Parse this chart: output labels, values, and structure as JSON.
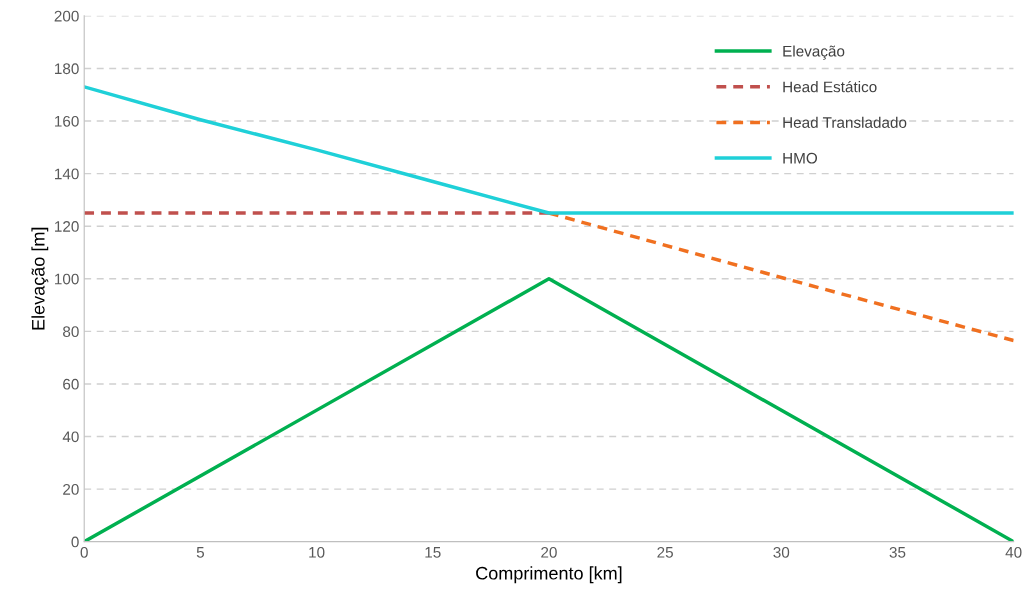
{
  "chart_data": {
    "type": "line",
    "xlabel": "Comprimento [km]",
    "ylabel": "Elevação [m]",
    "xlim": [
      0,
      40
    ],
    "xticks": [
      0,
      5,
      10,
      15,
      20,
      25,
      30,
      35,
      40
    ],
    "ylim": [
      0,
      200
    ],
    "yticks": [
      0,
      20,
      40,
      60,
      80,
      100,
      120,
      140,
      160,
      180,
      200
    ],
    "grid": "y",
    "legend": "top right",
    "marker": "none",
    "series": [
      {
        "name": "Elevação",
        "color": "#00b050",
        "line_style": "solid",
        "x": [
          0,
          20,
          40
        ],
        "values": [
          0,
          100,
          0
        ]
      },
      {
        "name": "Head Estático",
        "color": "#c0504d",
        "line_style": "dashed",
        "x": [
          0,
          20
        ],
        "values": [
          125,
          125
        ]
      },
      {
        "name": "Head Transladado",
        "color": "#f07020",
        "line_style": "dashed",
        "x": [
          20,
          30,
          40
        ],
        "values": [
          125,
          100.5,
          76.5
        ]
      },
      {
        "name": "HMO",
        "color": "#1fd0d8",
        "line_style": "solid",
        "x": [
          0,
          5,
          10,
          15,
          20,
          40
        ],
        "values": [
          173,
          160.5,
          149,
          137,
          125,
          125
        ]
      }
    ]
  }
}
